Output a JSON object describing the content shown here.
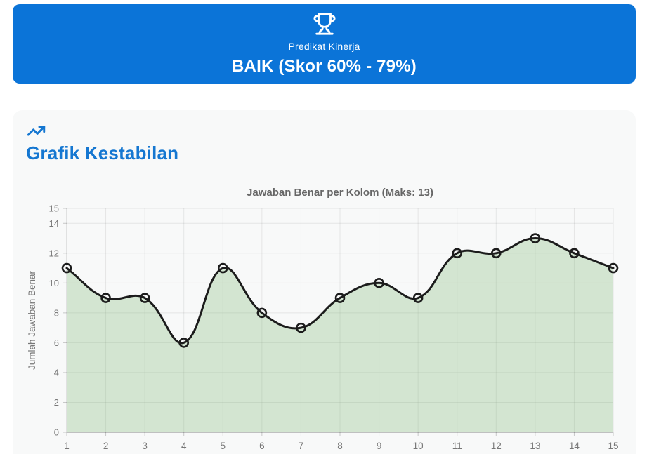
{
  "banner": {
    "icon": "trophy-icon",
    "label": "Predikat Kinerja",
    "value": "BAIK (Skor 60% - 79%)",
    "bg_color": "#0b74d8",
    "text_color": "#ffffff"
  },
  "card": {
    "icon": "trending-up-icon",
    "title": "Grafik Kestabilan",
    "title_color": "#1577d1",
    "bg_color": "#f8f9f9"
  },
  "chart_data": {
    "type": "line",
    "title": "Jawaban Benar per Kolom (Maks: 13)",
    "x": [
      1,
      2,
      3,
      4,
      5,
      6,
      7,
      8,
      9,
      10,
      11,
      12,
      13,
      14,
      15
    ],
    "series": [
      {
        "name": "Jawaban Benar",
        "values": [
          11,
          9,
          9,
          6,
          11,
          8,
          7,
          9,
          10,
          9,
          12,
          12,
          13,
          12,
          11
        ]
      }
    ],
    "xlabel": "",
    "ylabel": "Jumlah Jawaban Benar",
    "ylim": [
      0,
      15
    ],
    "yticks": [
      0,
      2,
      4,
      6,
      8,
      10,
      12,
      14,
      15
    ],
    "grid": true,
    "legend": false,
    "line_color": "#1c1c1c",
    "fill_color": "rgba(134,187,124,0.32)",
    "marker": "open-circle",
    "marker_radius": 6,
    "grid_color": "rgba(0,0,0,0.08)",
    "tick_color": "#777777",
    "title_color": "#666666"
  }
}
